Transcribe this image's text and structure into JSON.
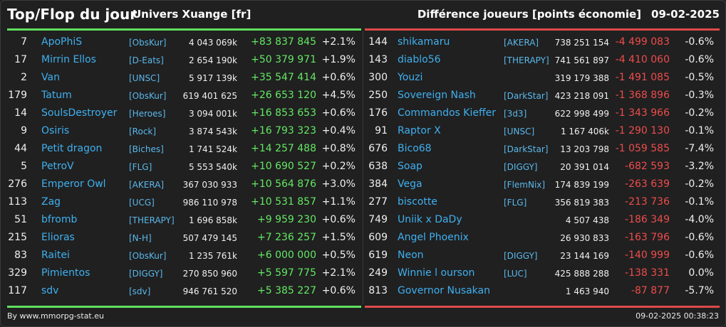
{
  "header": {
    "title": "Top/Flop du jour",
    "universe": "Univers Xuange [fr]",
    "subtitle": "Différence joueurs [points économie]",
    "date": "09-02-2025"
  },
  "colors": {
    "positive": "#64e864",
    "negative": "#ee4c4c",
    "name": "#3fb0f0",
    "background": "#202020"
  },
  "top": [
    {
      "rank": "7",
      "name": "ApoPhiS",
      "alliance": "[ObsKur]",
      "points": "4 043 069k",
      "diff": "+83 837 845",
      "pct": "+2.1%"
    },
    {
      "rank": "17",
      "name": "Mirrin Ellos",
      "alliance": "[D-Eats]",
      "points": "2 654 190k",
      "diff": "+50 379 971",
      "pct": "+1.9%"
    },
    {
      "rank": "2",
      "name": "Van",
      "alliance": "[UNSC]",
      "points": "5 917 139k",
      "diff": "+35 547 414",
      "pct": "+0.6%"
    },
    {
      "rank": "179",
      "name": "Tatum",
      "alliance": "[ObsKur]",
      "points": "619 401 625",
      "diff": "+26 653 120",
      "pct": "+4.5%"
    },
    {
      "rank": "14",
      "name": "SoulsDestroyer",
      "alliance": "[Heroes]",
      "points": "3 094 001k",
      "diff": "+16 853 653",
      "pct": "+0.6%"
    },
    {
      "rank": "9",
      "name": "Osiris",
      "alliance": "[Rock]",
      "points": "3 874 543k",
      "diff": "+16 793 323",
      "pct": "+0.4%"
    },
    {
      "rank": "44",
      "name": "Petit dragon",
      "alliance": "[Biches]",
      "points": "1 741 524k",
      "diff": "+14 257 488",
      "pct": "+0.8%"
    },
    {
      "rank": "5",
      "name": "PetroV",
      "alliance": "[FLG]",
      "points": "5 553 540k",
      "diff": "+10 690 527",
      "pct": "+0.2%"
    },
    {
      "rank": "276",
      "name": "Emperor Owl",
      "alliance": "[AKERA]",
      "points": "367 030 933",
      "diff": "+10 564 876",
      "pct": "+3.0%"
    },
    {
      "rank": "113",
      "name": "Zag",
      "alliance": "[UCG]",
      "points": "986 110 978",
      "diff": "+10 531 857",
      "pct": "+1.1%"
    },
    {
      "rank": "51",
      "name": "bfromb",
      "alliance": "[THERAPY]",
      "points": "1 696 858k",
      "diff": "+9 959 230",
      "pct": "+0.6%"
    },
    {
      "rank": "215",
      "name": "Elioras",
      "alliance": "[N-H]",
      "points": "507 479 145",
      "diff": "+7 236 257",
      "pct": "+1.5%"
    },
    {
      "rank": "83",
      "name": "Raitei",
      "alliance": "[ObsKur]",
      "points": "1 235 761k",
      "diff": "+6 000 000",
      "pct": "+0.5%"
    },
    {
      "rank": "329",
      "name": "Pimientos",
      "alliance": "[DIGGY]",
      "points": "270 850 960",
      "diff": "+5 597 775",
      "pct": "+2.1%"
    },
    {
      "rank": "117",
      "name": "sdv",
      "alliance": "[sdv]",
      "points": "946 761 520",
      "diff": "+5 385 227",
      "pct": "+0.6%"
    }
  ],
  "flop": [
    {
      "rank": "144",
      "name": "shikamaru",
      "alliance": "[AKERA]",
      "points": "738 251 154",
      "diff": "-4 499 083",
      "pct": "-0.6%"
    },
    {
      "rank": "143",
      "name": "diablo56",
      "alliance": "[THERAPY]",
      "points": "741 561 897",
      "diff": "-4 410 060",
      "pct": "-0.6%"
    },
    {
      "rank": "300",
      "name": "Youzi",
      "alliance": "",
      "points": "319 179 388",
      "diff": "-1 491 085",
      "pct": "-0.5%"
    },
    {
      "rank": "250",
      "name": "Sovereign Nash",
      "alliance": "[DarkStar]",
      "points": "423 218 091",
      "diff": "-1 368 896",
      "pct": "-0.3%"
    },
    {
      "rank": "176",
      "name": "Commandos Kieffer",
      "alliance": "[3d3]",
      "points": "622 998 499",
      "diff": "-1 343 966",
      "pct": "-0.2%"
    },
    {
      "rank": "91",
      "name": "Raptor X",
      "alliance": "[UNSC]",
      "points": "1 167 406k",
      "diff": "-1 290 130",
      "pct": "-0.1%"
    },
    {
      "rank": "676",
      "name": "Bico68",
      "alliance": "[DarkStar]",
      "points": "13 203 798",
      "diff": "-1 059 585",
      "pct": "-7.4%"
    },
    {
      "rank": "638",
      "name": "Soap",
      "alliance": "[DIGGY]",
      "points": "20 391 014",
      "diff": "-682 593",
      "pct": "-3.2%"
    },
    {
      "rank": "384",
      "name": "Vega",
      "alliance": "[FlemNix]",
      "points": "174 839 199",
      "diff": "-263 639",
      "pct": "-0.2%"
    },
    {
      "rank": "277",
      "name": "biscotte",
      "alliance": "[FLG]",
      "points": "356 819 383",
      "diff": "-213 736",
      "pct": "-0.1%"
    },
    {
      "rank": "749",
      "name": "Uniik x DaDy",
      "alliance": "",
      "points": "4 507 438",
      "diff": "-186 349",
      "pct": "-4.0%"
    },
    {
      "rank": "609",
      "name": "Angel Phoenix",
      "alliance": "",
      "points": "26 930 833",
      "diff": "-163 796",
      "pct": "-0.6%"
    },
    {
      "rank": "619",
      "name": "Neon",
      "alliance": "[DIGGY]",
      "points": "23 144 169",
      "diff": "-140 999",
      "pct": "-0.6%"
    },
    {
      "rank": "249",
      "name": "Winnie l ourson",
      "alliance": "[LUC]",
      "points": "425 888 288",
      "diff": "-138 331",
      "pct": "0.0%"
    },
    {
      "rank": "813",
      "name": "Governor Nusakan",
      "alliance": "",
      "points": "1 463 940",
      "diff": "-87 877",
      "pct": "-5.7%"
    }
  ],
  "footer": {
    "credit": "By www.mmorpg-stat.eu",
    "timestamp": "09-02-2025 00:38:23"
  }
}
